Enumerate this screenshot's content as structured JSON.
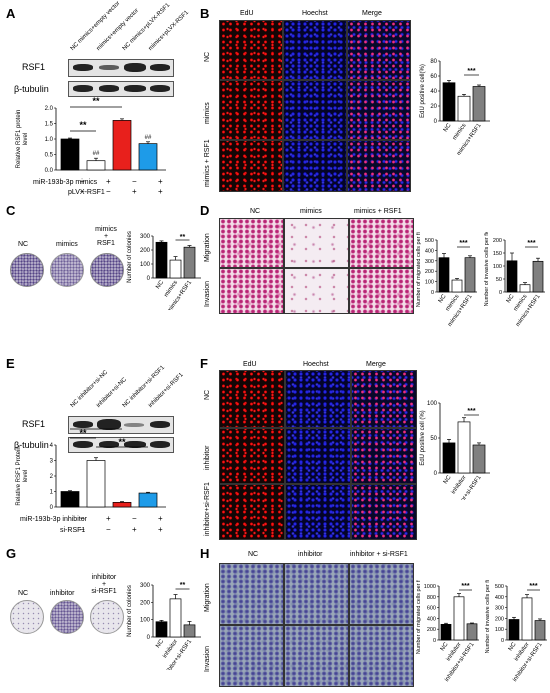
{
  "panels": {
    "A": {
      "label": "A",
      "lanes": [
        "NC mimics+empty vector",
        "mimics+empty vector",
        "NC mimics+pLVX-RSF1",
        "mimics+pLVX-RSF1"
      ],
      "blot_labels": [
        "RSF1",
        "β-tubulin"
      ],
      "sig": [
        "**",
        "**",
        "##",
        "##"
      ],
      "treat_rows": [
        {
          "name": "miR-193b-3p mimics",
          "signs": [
            "−",
            "+",
            "−",
            "+"
          ]
        },
        {
          "name": "pLVX-RSF1",
          "signs": [
            "−",
            "−",
            "+",
            "+"
          ]
        }
      ]
    },
    "B": {
      "label": "B",
      "cols": [
        "EdU",
        "Hoechst",
        "Merge"
      ],
      "rows": [
        "NC",
        "mimics",
        "mimics + RSF1"
      ],
      "sig": "***"
    },
    "C": {
      "label": "C",
      "cols": [
        "NC",
        "mimics",
        "mimics\n+\nRSF1"
      ],
      "sig": "**"
    },
    "D": {
      "label": "D",
      "cols": [
        "NC",
        "mimics",
        "mimics + RSF1"
      ],
      "rows": [
        "Migration",
        "Invasion"
      ],
      "sig1": "***",
      "sig2": "***"
    },
    "E": {
      "label": "E",
      "lanes": [
        "NC inhibitor+si-NC",
        "inhibitor+si-NC",
        "NC inhibitor+si-RSF1",
        "inhibitor+si-RSF1"
      ],
      "blot_labels": [
        "RSF1",
        "β-tubulin"
      ],
      "sig": [
        "**",
        "**",
        "**"
      ],
      "treat_rows": [
        {
          "name": "miR-193b-3p inhibitor",
          "signs": [
            "−",
            "+",
            "−",
            "+"
          ]
        },
        {
          "name": "si-RSF1",
          "signs": [
            "−",
            "−",
            "+",
            "+"
          ]
        }
      ]
    },
    "F": {
      "label": "F",
      "cols": [
        "EdU",
        "Hoechst",
        "Merge"
      ],
      "rows": [
        "NC",
        "inhibitor",
        "inhibitor+si-RSF1"
      ],
      "sig": "***"
    },
    "G": {
      "label": "G",
      "cols": [
        "NC",
        "inhibitor",
        "inhibitor\n+\nsi-RSF1"
      ],
      "sig": "**"
    },
    "H": {
      "label": "H",
      "cols": [
        "NC",
        "inhibitor",
        "inhibitor + si-RSF1"
      ],
      "rows": [
        "Migration",
        "Invasion"
      ],
      "sig1": "***",
      "sig2": "***"
    }
  },
  "colors": {
    "black": "#000000",
    "white": "#ffffff",
    "red": "#e8201c",
    "blue": "#1e9be8",
    "gray": "#808080"
  },
  "chart_data": [
    {
      "id": "A",
      "type": "bar",
      "categories": [
        "NC mimics+empty vector",
        "mimics+empty vector",
        "NC mimics+pLVX-RSF1",
        "mimics+pLVX-RSF1"
      ],
      "values": [
        1.0,
        0.3,
        1.6,
        0.85
      ],
      "errors": [
        0.03,
        0.08,
        0.05,
        0.06
      ],
      "ylabel": "Relative RSF1 protein\nlevel",
      "ylim": [
        0,
        2
      ],
      "yticks": [
        "0.0",
        "0.5",
        "1.0",
        "1.5",
        "2.0"
      ],
      "colors": [
        "#000000",
        "#ffffff",
        "#e8201c",
        "#1e9be8"
      ]
    },
    {
      "id": "B",
      "type": "bar",
      "categories": [
        "NC",
        "mimics",
        "mimics+RSF1"
      ],
      "values": [
        51,
        33,
        46
      ],
      "errors": [
        3,
        2.5,
        2
      ],
      "ylabel": "EdU positive cell(%)",
      "ylim": [
        0,
        80
      ],
      "yticks": [
        "0",
        "20",
        "40",
        "60",
        "80"
      ],
      "colors": [
        "#000000",
        "#ffffff",
        "#808080"
      ]
    },
    {
      "id": "C",
      "type": "bar",
      "categories": [
        "NC",
        "mimics",
        "mimics+RSF1"
      ],
      "values": [
        255,
        128,
        220
      ],
      "errors": [
        10,
        25,
        12
      ],
      "ylabel": "Number of colonies",
      "ylim": [
        0,
        300
      ],
      "yticks": [
        "0",
        "100",
        "200",
        "300"
      ],
      "colors": [
        "#000000",
        "#ffffff",
        "#808080"
      ]
    },
    {
      "id": "D1",
      "type": "bar",
      "categories": [
        "NC",
        "mimics",
        "mimics+RSF1"
      ],
      "values": [
        330,
        115,
        330
      ],
      "errors": [
        40,
        15,
        18
      ],
      "ylabel": "Number of migrated cells per field",
      "ylim": [
        0,
        500
      ],
      "yticks": [
        "0",
        "100",
        "200",
        "300",
        "400",
        "500"
      ],
      "colors": [
        "#000000",
        "#ffffff",
        "#808080"
      ]
    },
    {
      "id": "D2",
      "type": "bar",
      "categories": [
        "NC",
        "mimics",
        "mimics+RSF1"
      ],
      "values": [
        120,
        28,
        118
      ],
      "errors": [
        30,
        8,
        12
      ],
      "ylabel": "Number of invasive cells per field",
      "ylim": [
        0,
        200
      ],
      "yticks": [
        "0",
        "50",
        "100",
        "150",
        "200"
      ],
      "colors": [
        "#000000",
        "#ffffff",
        "#808080"
      ]
    },
    {
      "id": "E",
      "type": "bar",
      "categories": [
        "NC inhibitor+si-NC",
        "inhibitor+si-NC",
        "NC inhibitor+si-RSF1",
        "inhibitor+si-RSF1"
      ],
      "values": [
        1.0,
        3.0,
        0.3,
        0.9
      ],
      "errors": [
        0.05,
        0.18,
        0.05,
        0.05
      ],
      "ylabel": "Relative RSF1 Protein\nlevel",
      "ylim": [
        0,
        4
      ],
      "yticks": [
        "0",
        "1",
        "2",
        "3",
        "4"
      ],
      "colors": [
        "#000000",
        "#ffffff",
        "#e8201c",
        "#1e9be8"
      ]
    },
    {
      "id": "F",
      "type": "bar",
      "categories": [
        "NC",
        "inhibitor",
        "inhibitor+si-RSF1"
      ],
      "values": [
        43,
        73,
        40
      ],
      "errors": [
        5,
        6,
        3
      ],
      "ylabel": "EdU positive cell (%)",
      "ylim": [
        0,
        100
      ],
      "yticks": [
        "0",
        "50",
        "100"
      ],
      "colors": [
        "#000000",
        "#ffffff",
        "#808080"
      ]
    },
    {
      "id": "G",
      "type": "bar",
      "categories": [
        "NC",
        "inhibitor",
        "inhibitor+si-RSF1"
      ],
      "values": [
        88,
        220,
        70
      ],
      "errors": [
        8,
        25,
        20
      ],
      "ylabel": "Number of colonies",
      "ylim": [
        0,
        300
      ],
      "yticks": [
        "0",
        "100",
        "200",
        "300"
      ],
      "colors": [
        "#000000",
        "#ffffff",
        "#808080"
      ]
    },
    {
      "id": "H1",
      "type": "bar",
      "categories": [
        "NC",
        "inhibitor",
        "inhibitor+si-RSF1"
      ],
      "values": [
        290,
        800,
        300
      ],
      "errors": [
        20,
        60,
        15
      ],
      "ylabel": "Number of migrated cells per field",
      "ylim": [
        0,
        1000
      ],
      "yticks": [
        "0",
        "200",
        "400",
        "600",
        "800",
        "1000"
      ],
      "colors": [
        "#000000",
        "#ffffff",
        "#808080"
      ]
    },
    {
      "id": "H2",
      "type": "bar",
      "categories": [
        "NC",
        "inhibitor",
        "inhibitor+si-RSF1"
      ],
      "values": [
        190,
        390,
        180
      ],
      "errors": [
        20,
        30,
        15
      ],
      "ylabel": "Number of invasive cells per field",
      "ylim": [
        0,
        500
      ],
      "yticks": [
        "0",
        "100",
        "200",
        "300",
        "400",
        "500"
      ],
      "colors": [
        "#000000",
        "#ffffff",
        "#808080"
      ]
    }
  ]
}
